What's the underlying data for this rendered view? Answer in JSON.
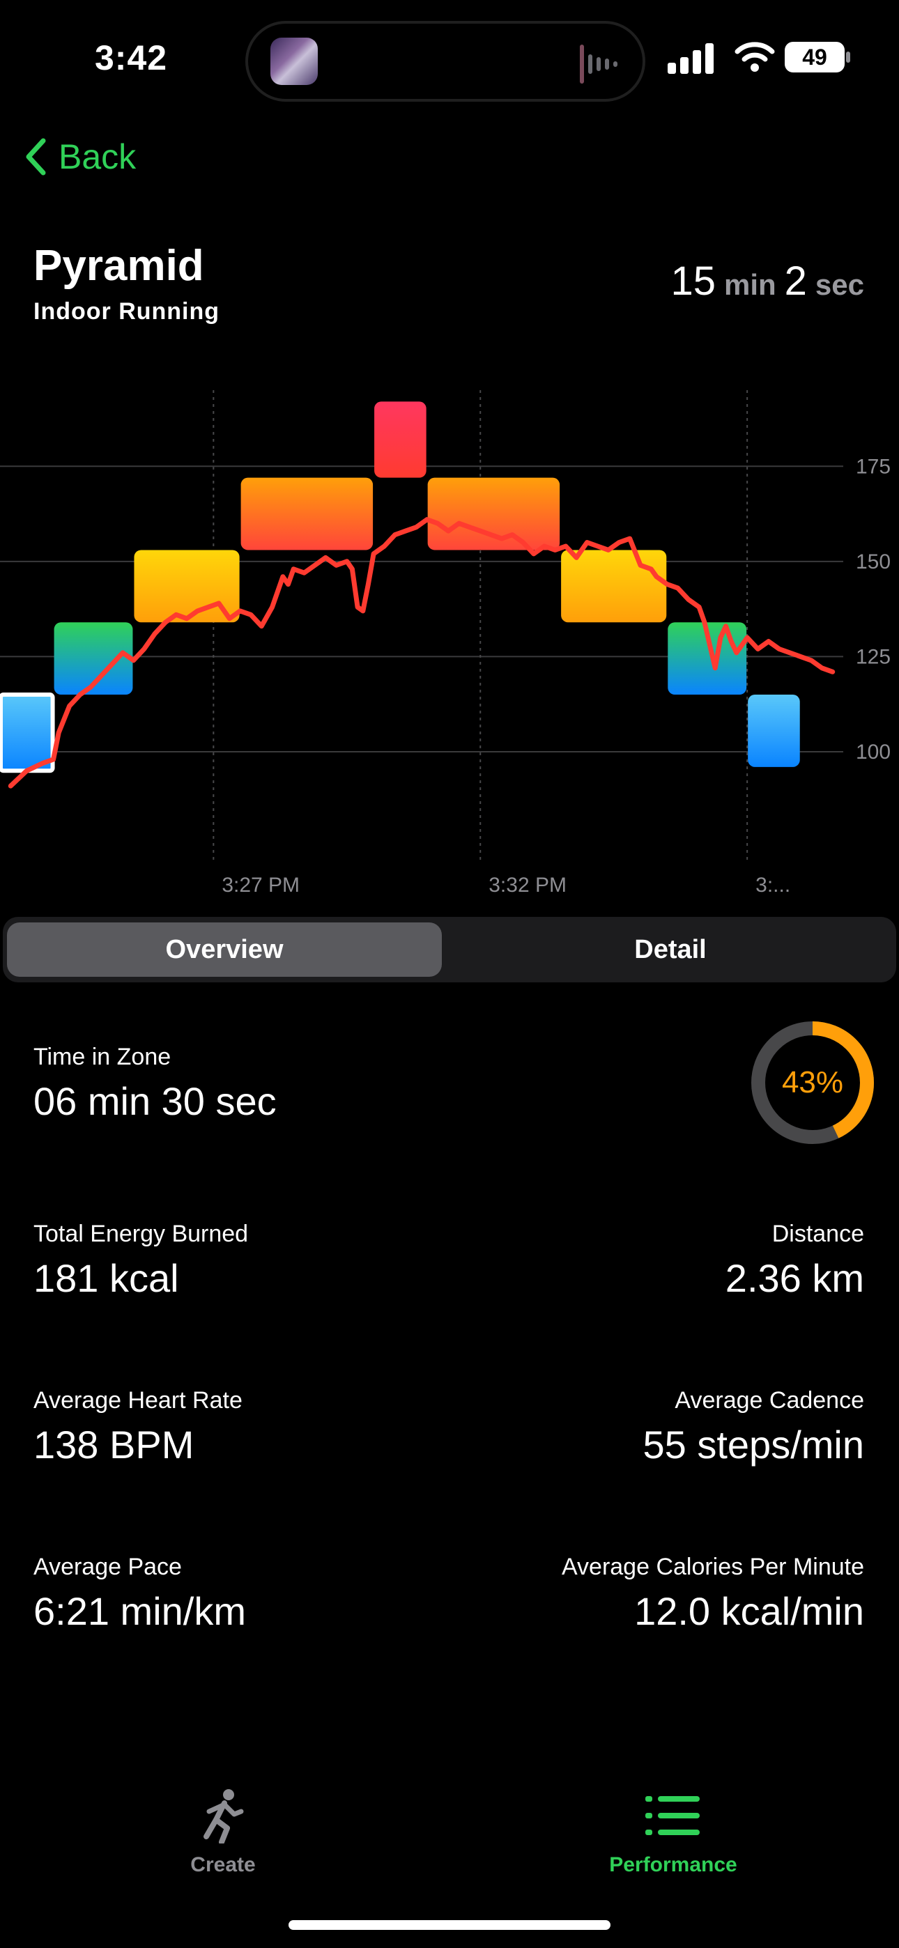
{
  "status_bar": {
    "time": "3:42",
    "battery": "49"
  },
  "nav": {
    "back_label": "Back"
  },
  "workout": {
    "title": "Pyramid",
    "subtitle": "Indoor  Running",
    "duration": {
      "minutes": "15",
      "min_unit": "min",
      "seconds": "2",
      "sec_unit": "sec"
    }
  },
  "chart_data": {
    "type": "line",
    "title": "",
    "xlabel": "",
    "ylabel": "",
    "y_ticks": [
      100,
      125,
      150,
      175
    ],
    "ylim": [
      87,
      195
    ],
    "x_ticks": [
      "3:27 PM",
      "3:32 PM",
      "3:..."
    ],
    "x_range_min": [
      0,
      15.8
    ],
    "x_tick_positions_min": [
      4.0,
      9.0,
      14.0
    ],
    "grid": true,
    "zone_blocks": [
      {
        "t0": 0.0,
        "t1": 1.0,
        "bpm_low": 95,
        "bpm_high": 115,
        "zone": "blue",
        "selected": true
      },
      {
        "t0": 1.0,
        "t1": 2.5,
        "bpm_low": 115,
        "bpm_high": 134,
        "zone": "green"
      },
      {
        "t0": 2.5,
        "t1": 4.5,
        "bpm_low": 134,
        "bpm_high": 153,
        "zone": "yellow"
      },
      {
        "t0": 4.5,
        "t1": 7.0,
        "bpm_low": 153,
        "bpm_high": 172,
        "zone": "orange"
      },
      {
        "t0": 7.0,
        "t1": 8.0,
        "bpm_low": 172,
        "bpm_high": 192,
        "zone": "red"
      },
      {
        "t0": 8.0,
        "t1": 10.5,
        "bpm_low": 153,
        "bpm_high": 172,
        "zone": "orange"
      },
      {
        "t0": 10.5,
        "t1": 12.5,
        "bpm_low": 134,
        "bpm_high": 153,
        "zone": "yellow"
      },
      {
        "t0": 12.5,
        "t1": 14.0,
        "bpm_low": 115,
        "bpm_high": 134,
        "zone": "green"
      },
      {
        "t0": 14.0,
        "t1": 15.0,
        "bpm_low": 96,
        "bpm_high": 115,
        "zone": "blue"
      }
    ],
    "series": [
      {
        "color": "#ff3b30",
        "x": [
          0.2,
          0.5,
          0.8,
          1.0,
          1.1,
          1.3,
          1.5,
          1.7,
          1.9,
          2.1,
          2.3,
          2.5,
          2.7,
          2.9,
          3.1,
          3.3,
          3.5,
          3.7,
          3.9,
          4.1,
          4.3,
          4.5,
          4.7,
          4.9,
          5.1,
          5.3,
          5.4,
          5.5,
          5.7,
          5.9,
          6.1,
          6.3,
          6.5,
          6.6,
          6.7,
          6.8,
          6.9,
          7.0,
          7.2,
          7.4,
          7.6,
          7.8,
          8.0,
          8.2,
          8.4,
          8.6,
          8.8,
          9.0,
          9.2,
          9.4,
          9.6,
          9.8,
          10.0,
          10.2,
          10.4,
          10.6,
          10.8,
          11.0,
          11.2,
          11.4,
          11.6,
          11.8,
          12.0,
          12.2,
          12.3,
          12.4,
          12.5,
          12.7,
          12.9,
          13.1,
          13.2,
          13.3,
          13.4,
          13.5,
          13.6,
          13.7,
          13.8,
          14.0,
          14.2,
          14.4,
          14.6,
          14.8,
          15.0,
          15.2,
          15.4,
          15.6
        ],
        "y": [
          91,
          95,
          97,
          98,
          105,
          112,
          115,
          117,
          120,
          123,
          126,
          124,
          127,
          131,
          134,
          136,
          135,
          137,
          138,
          139,
          135,
          137,
          136,
          133,
          138,
          146,
          144,
          148,
          147,
          149,
          151,
          149,
          150,
          148,
          138,
          137,
          144,
          152,
          154,
          157,
          158,
          159,
          161,
          160,
          158,
          160,
          159,
          158,
          157,
          156,
          157,
          155,
          152,
          154,
          153,
          154,
          151,
          155,
          154,
          153,
          155,
          156,
          149,
          148,
          146,
          145,
          144,
          143,
          140,
          138,
          134,
          128,
          122,
          130,
          133,
          129,
          126,
          130,
          127,
          129,
          127,
          126,
          125,
          124,
          122,
          121
        ]
      }
    ]
  },
  "segments": {
    "overview": "Overview",
    "detail": "Detail"
  },
  "time_in_zone": {
    "label": "Time in Zone",
    "value": "06 min 30 sec",
    "percent_text": "43%",
    "percent": 0.43
  },
  "stats": {
    "energy": {
      "label": "Total Energy Burned",
      "value": "181 kcal"
    },
    "distance": {
      "label": "Distance",
      "value": "2.36 km"
    },
    "avg_hr": {
      "label": "Average Heart Rate",
      "value": "138 BPM"
    },
    "cadence": {
      "label": "Average Cadence",
      "value": "55 steps/min"
    },
    "pace": {
      "label": "Average Pace",
      "value": "6:21 min/km"
    },
    "cal_per_min": {
      "label": "Average Calories Per Minute",
      "value": "12.0 kcal/min"
    }
  },
  "tabbar": {
    "create": "Create",
    "performance": "Performance"
  },
  "colors": {
    "accent_green": "#30d158",
    "ring_orange": "#ff9f0a",
    "hr_line": "#ff3b30"
  }
}
